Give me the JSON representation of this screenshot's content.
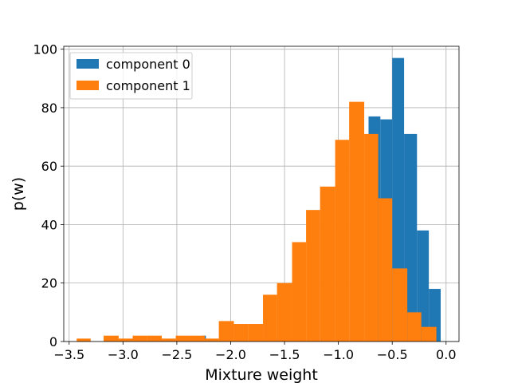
{
  "chart_data": {
    "type": "histogram",
    "xlabel": "Mixture weight",
    "ylabel": "p(w)",
    "xlim": [
      -3.55,
      0.12
    ],
    "ylim": [
      0,
      101
    ],
    "xticks": [
      -3.5,
      -3.0,
      -2.5,
      -2.0,
      -1.5,
      -1.0,
      -0.5,
      0.0
    ],
    "xtick_labels": [
      "−3.5",
      "−3.0",
      "−2.5",
      "−2.0",
      "−1.5",
      "−1.0",
      "−0.5",
      "0.0"
    ],
    "yticks": [
      0,
      20,
      40,
      60,
      80,
      100
    ],
    "ytick_labels": [
      "0",
      "20",
      "40",
      "60",
      "80",
      "100"
    ],
    "grid": true,
    "legend_position": "top-left",
    "series": [
      {
        "name": "component 0",
        "color": "#1f77b4",
        "bins": [
          {
            "x0": -2.26,
            "x1": -2.23,
            "count": 2
          },
          {
            "x0": -1.57,
            "x1": -1.43,
            "count": 1
          },
          {
            "x0": -0.72,
            "x1": -0.61,
            "count": 77
          },
          {
            "x0": -0.61,
            "x1": -0.5,
            "count": 76
          },
          {
            "x0": -0.5,
            "x1": -0.39,
            "count": 97
          },
          {
            "x0": -0.39,
            "x1": -0.27,
            "count": 71
          },
          {
            "x0": -0.27,
            "x1": -0.16,
            "count": 38
          },
          {
            "x0": -0.16,
            "x1": -0.05,
            "count": 18
          }
        ]
      },
      {
        "name": "component 1",
        "color": "#ff7f0e",
        "bins": [
          {
            "x0": -3.43,
            "x1": -3.3,
            "count": 1
          },
          {
            "x0": -3.18,
            "x1": -3.04,
            "count": 2
          },
          {
            "x0": -3.04,
            "x1": -2.91,
            "count": 1
          },
          {
            "x0": -2.91,
            "x1": -2.78,
            "count": 2
          },
          {
            "x0": -2.78,
            "x1": -2.64,
            "count": 2
          },
          {
            "x0": -2.64,
            "x1": -2.51,
            "count": 1
          },
          {
            "x0": -2.51,
            "x1": -2.37,
            "count": 2
          },
          {
            "x0": -2.37,
            "x1": -2.24,
            "count": 2
          },
          {
            "x0": -2.24,
            "x1": -2.11,
            "count": 1
          },
          {
            "x0": -2.11,
            "x1": -1.97,
            "count": 7
          },
          {
            "x0": -1.97,
            "x1": -1.84,
            "count": 6
          },
          {
            "x0": -1.84,
            "x1": -1.7,
            "count": 6
          },
          {
            "x0": -1.7,
            "x1": -1.57,
            "count": 16
          },
          {
            "x0": -1.57,
            "x1": -1.43,
            "count": 20
          },
          {
            "x0": -1.43,
            "x1": -1.3,
            "count": 34
          },
          {
            "x0": -1.3,
            "x1": -1.17,
            "count": 45
          },
          {
            "x0": -1.17,
            "x1": -1.03,
            "count": 53
          },
          {
            "x0": -1.03,
            "x1": -0.9,
            "count": 69
          },
          {
            "x0": -0.9,
            "x1": -0.76,
            "count": 82
          },
          {
            "x0": -0.76,
            "x1": -0.63,
            "count": 71
          },
          {
            "x0": -0.63,
            "x1": -0.5,
            "count": 49
          },
          {
            "x0": -0.5,
            "x1": -0.36,
            "count": 25
          },
          {
            "x0": -0.36,
            "x1": -0.23,
            "count": 10
          },
          {
            "x0": -0.23,
            "x1": -0.09,
            "count": 5
          }
        ]
      }
    ]
  }
}
